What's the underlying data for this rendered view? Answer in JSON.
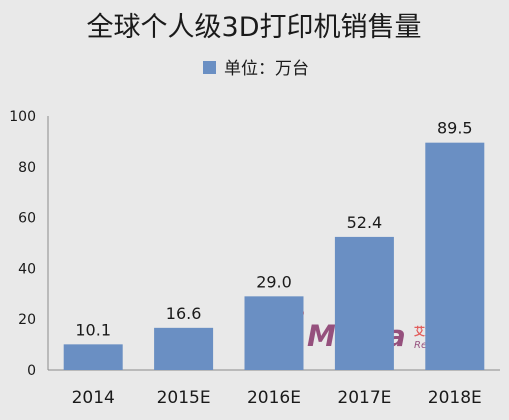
{
  "chart_data": {
    "type": "bar",
    "title": "全球个人级3D打印机销售量",
    "legend": {
      "label": "单位：万台",
      "color": "#6a8fc3",
      "placement": "top-center"
    },
    "categories": [
      "2014",
      "2015E",
      "2016E",
      "2017E",
      "2018E"
    ],
    "values": [
      10.1,
      16.6,
      29.0,
      52.4,
      89.5
    ],
    "data_labels": [
      "10.1",
      "16.6",
      "29.0",
      "52.4",
      "89.5"
    ],
    "ylim": [
      0,
      100
    ],
    "yticks": [
      0,
      20,
      40,
      60,
      80,
      100
    ],
    "grid": false,
    "bar_color": "#6a8fc3"
  },
  "watermark": {
    "brand": "iiMedia",
    "cn_text": "艾媒咨询",
    "en_text": "Research",
    "colors": {
      "primary": "#e0312f",
      "secondary": "#7a1e5a"
    }
  }
}
